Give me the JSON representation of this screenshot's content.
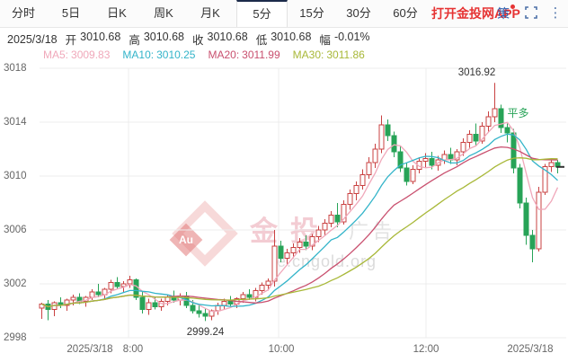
{
  "tabs": {
    "items": [
      {
        "label": "分时"
      },
      {
        "label": "5日"
      },
      {
        "label": "日K"
      },
      {
        "label": "周K"
      },
      {
        "label": "月K"
      },
      {
        "label": "5分"
      },
      {
        "label": "15分"
      },
      {
        "label": "30分"
      },
      {
        "label": "60分"
      }
    ],
    "active_index": 5,
    "app_link": "打开金投网APP",
    "strategy_label": "策"
  },
  "info_bar": {
    "date": "2025/3/18",
    "open_label": "开",
    "open_value": "3010.68",
    "high_label": "高",
    "high_value": "3010.68",
    "close_label": "收",
    "close_value": "3010.68",
    "low_label": "低",
    "low_value": "3010.68",
    "change_label": "幅",
    "change_value": "-0.01%"
  },
  "ma_legend": [
    {
      "label": "MA5:",
      "value": "3009.83",
      "color": "#f0a8ba"
    },
    {
      "label": "MA10:",
      "value": "3010.25",
      "color": "#33b4c9"
    },
    {
      "label": "MA20:",
      "value": "3011.99",
      "color": "#c9506f"
    },
    {
      "label": "MA30:",
      "value": "3011.86",
      "color": "#a8b838"
    }
  ],
  "watermark": {
    "logo": "Au",
    "brand": "金投",
    "ad": "广告",
    "site": "e.cngold.org"
  },
  "chart_data": {
    "type": "candlestick",
    "interval": "5min",
    "y_ticks": [
      3018,
      3014,
      3010,
      3006,
      3002,
      2998
    ],
    "ylim": [
      2998,
      3018
    ],
    "x_ticks": [
      {
        "label": "2025/3/18",
        "x": 100
      },
      {
        "label": "8:00",
        "x": 148
      },
      {
        "label": "10:00",
        "x": 313
      },
      {
        "label": "12:00",
        "x": 474
      },
      {
        "label": "2025/3/18",
        "x": 590
      }
    ],
    "v_gridlines": [
      143,
      310,
      474
    ],
    "grid": true,
    "last_price": 3010.68,
    "annotations": {
      "high": {
        "text": "3016.92",
        "index": 72
      },
      "low": {
        "text": "2999.24",
        "index": 26
      },
      "trade": {
        "text": "平多",
        "index": 73,
        "price": 3014.9
      }
    },
    "ma_periods": [
      5,
      10,
      20,
      30
    ],
    "colors": {
      "up": "#c94141",
      "down": "#27a357",
      "grid": "#ececec",
      "axis_text": "#666666",
      "last_dash": "#333333",
      "trade": "#27a357"
    },
    "candles": [
      [
        3000.2,
        3000.6,
        2999.4,
        3000.5
      ],
      [
        3000.5,
        3000.8,
        2999.3,
        3000.1
      ],
      [
        3000.1,
        3000.7,
        2999.6,
        3000.6
      ],
      [
        3000.6,
        3001.0,
        3000.2,
        3000.4
      ],
      [
        3000.4,
        3000.9,
        3000.0,
        3000.8
      ],
      [
        3000.8,
        3001.2,
        3000.4,
        3001.0
      ],
      [
        3001.0,
        3001.3,
        3000.5,
        3000.7
      ],
      [
        3000.7,
        3001.1,
        3000.3,
        3001.0
      ],
      [
        3001.0,
        3001.6,
        3000.8,
        3001.4
      ],
      [
        3001.4,
        3002.0,
        3001.0,
        3001.2
      ],
      [
        3001.2,
        3001.7,
        3000.8,
        3001.6
      ],
      [
        3001.6,
        3002.3,
        3001.3,
        3002.1
      ],
      [
        3002.1,
        3002.5,
        3001.6,
        3001.8
      ],
      [
        3001.8,
        3002.2,
        3001.4,
        3002.0
      ],
      [
        3002.0,
        3002.6,
        3001.7,
        3002.3
      ],
      [
        3002.3,
        3002.4,
        3000.8,
        3001.0
      ],
      [
        3001.0,
        3001.4,
        2999.8,
        3000.1
      ],
      [
        3000.1,
        3000.9,
        2999.7,
        3000.6
      ],
      [
        3000.6,
        3001.0,
        3000.1,
        3000.3
      ],
      [
        3000.3,
        3000.9,
        3000.0,
        3000.7
      ],
      [
        3000.7,
        3001.2,
        3000.4,
        3001.0
      ],
      [
        3001.0,
        3001.5,
        3000.6,
        3000.8
      ],
      [
        3000.8,
        3001.3,
        3000.4,
        3001.1
      ],
      [
        3001.1,
        3001.4,
        3000.2,
        3000.4
      ],
      [
        3000.4,
        3000.8,
        2999.8,
        3000.0
      ],
      [
        3000.0,
        3000.5,
        2999.5,
        2999.8
      ],
      [
        2999.8,
        3000.2,
        2999.24,
        2999.6
      ],
      [
        2999.6,
        3000.1,
        2999.3,
        3000.0
      ],
      [
        3000.0,
        3000.6,
        2999.7,
        3000.4
      ],
      [
        3000.4,
        3000.9,
        3000.1,
        3000.7
      ],
      [
        3000.7,
        3001.1,
        3000.3,
        3000.5
      ],
      [
        3000.5,
        3001.0,
        3000.2,
        3000.9
      ],
      [
        3000.9,
        3001.4,
        3000.6,
        3001.2
      ],
      [
        3001.2,
        3001.6,
        3000.8,
        3001.0
      ],
      [
        3001.0,
        3001.7,
        3000.7,
        3001.5
      ],
      [
        3001.5,
        3002.1,
        3001.2,
        3001.9
      ],
      [
        3001.9,
        3002.4,
        3001.5,
        3002.2
      ],
      [
        3002.2,
        3006.0,
        3001.8,
        3004.8
      ],
      [
        3004.8,
        3005.2,
        3003.6,
        3003.9
      ],
      [
        3003.9,
        3004.6,
        3003.4,
        3004.3
      ],
      [
        3004.3,
        3005.0,
        3003.9,
        3004.7
      ],
      [
        3004.7,
        3005.4,
        3004.3,
        3005.1
      ],
      [
        3005.1,
        3005.6,
        3004.5,
        3004.8
      ],
      [
        3004.8,
        3005.7,
        3004.5,
        3005.5
      ],
      [
        3005.5,
        3006.3,
        3005.1,
        3006.0
      ],
      [
        3006.0,
        3006.8,
        3005.6,
        3006.5
      ],
      [
        3006.5,
        3007.4,
        3006.2,
        3007.1
      ],
      [
        3007.1,
        3008.0,
        3006.2,
        3006.6
      ],
      [
        3006.6,
        3008.2,
        3006.4,
        3007.9
      ],
      [
        3007.9,
        3009.0,
        3007.5,
        3008.7
      ],
      [
        3008.7,
        3009.6,
        3008.2,
        3009.3
      ],
      [
        3009.3,
        3010.5,
        3009.0,
        3010.1
      ],
      [
        3010.1,
        3011.4,
        3009.8,
        3011.0
      ],
      [
        3011.0,
        3012.4,
        3010.6,
        3012.0
      ],
      [
        3012.0,
        3014.5,
        3011.7,
        3013.8
      ],
      [
        3013.8,
        3014.2,
        3012.6,
        3013.0
      ],
      [
        3013.0,
        3013.3,
        3011.4,
        3011.8
      ],
      [
        3011.8,
        3012.2,
        3010.3,
        3010.6
      ],
      [
        3010.6,
        3011.0,
        3009.3,
        3009.6
      ],
      [
        3009.6,
        3010.8,
        3009.4,
        3010.5
      ],
      [
        3010.5,
        3011.4,
        3010.2,
        3011.1
      ],
      [
        3011.1,
        3011.7,
        3010.6,
        3011.3
      ],
      [
        3011.3,
        3011.8,
        3010.5,
        3010.8
      ],
      [
        3010.8,
        3011.5,
        3010.4,
        3011.2
      ],
      [
        3011.2,
        3011.9,
        3010.9,
        3011.6
      ],
      [
        3011.6,
        3012.1,
        3010.9,
        3011.2
      ],
      [
        3011.2,
        3012.0,
        3010.8,
        3011.8
      ],
      [
        3011.8,
        3012.8,
        3011.5,
        3012.5
      ],
      [
        3012.5,
        3013.4,
        3012.1,
        3013.1
      ],
      [
        3013.1,
        3013.9,
        3012.3,
        3012.6
      ],
      [
        3012.6,
        3014.0,
        3012.4,
        3013.7
      ],
      [
        3013.7,
        3014.8,
        3013.3,
        3014.4
      ],
      [
        3014.4,
        3016.92,
        3014.0,
        3015.0
      ],
      [
        3015.0,
        3015.3,
        3013.2,
        3013.6
      ],
      [
        3013.6,
        3013.9,
        3012.5,
        3013.2
      ],
      [
        3013.2,
        3013.5,
        3010.2,
        3010.6
      ],
      [
        3010.6,
        3010.9,
        3007.6,
        3008.0
      ],
      [
        3008.0,
        3008.4,
        3004.9,
        3005.6
      ],
      [
        3005.6,
        3006.0,
        3003.6,
        3004.6
      ],
      [
        3004.6,
        3009.2,
        3004.4,
        3008.8
      ],
      [
        3008.8,
        3010.9,
        3008.6,
        3010.7
      ],
      [
        3010.7,
        3011.3,
        3010.3,
        3011.0
      ],
      [
        3011.0,
        3011.2,
        3010.2,
        3010.68
      ]
    ]
  }
}
